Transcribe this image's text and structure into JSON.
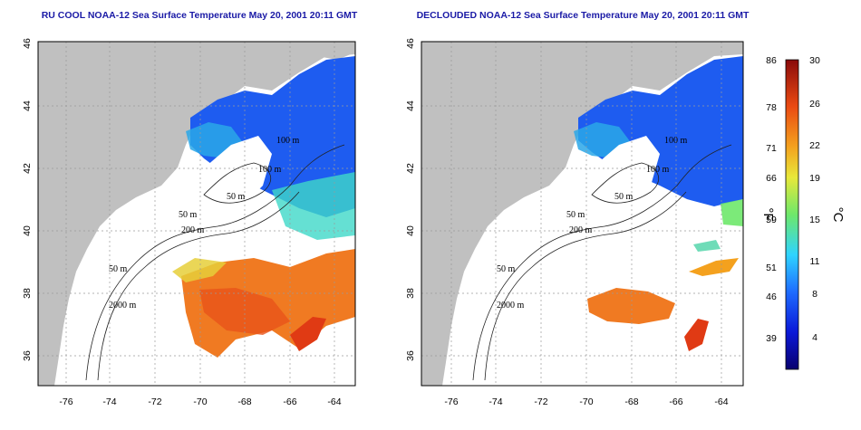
{
  "maps": [
    {
      "id": "ru-cool",
      "title": "RU COOL NOAA-12 Sea Surface Temperature May 20, 2001 20:11 GMT",
      "variant": "full"
    },
    {
      "id": "declouded",
      "title": "DECLOUDED NOAA-12 Sea Surface Temperature May 20, 2001 20:11 GMT",
      "variant": "declouded"
    }
  ],
  "axes": {
    "lon_ticks": [
      "-76",
      "-74",
      "-72",
      "-70",
      "-68",
      "-66",
      "-64"
    ],
    "lat_ticks": [
      "46",
      "44",
      "42",
      "40",
      "38",
      "36"
    ],
    "lon_range": [
      -77,
      -63
    ],
    "lat_range": [
      35,
      46
    ]
  },
  "contour_labels": [
    "100 m",
    "100 m",
    "50 m",
    "200 m",
    "50 m",
    "2000 m",
    "50 m"
  ],
  "colorbar": {
    "fahrenheit_ticks": [
      "86",
      "78",
      "71",
      "66",
      "59",
      "51",
      "46",
      "39"
    ],
    "celsius_ticks": [
      "30",
      "26",
      "22",
      "19",
      "15",
      "11",
      "8",
      "4"
    ],
    "fahrenheit_unit": "°F",
    "celsius_unit": "°C",
    "celsius_range": [
      0,
      30
    ]
  },
  "colors": {
    "land": "#c0c0c0",
    "ocean_cloud": "#ffffff",
    "title": "#1a1aa6",
    "grid": "#9a9a9a"
  }
}
